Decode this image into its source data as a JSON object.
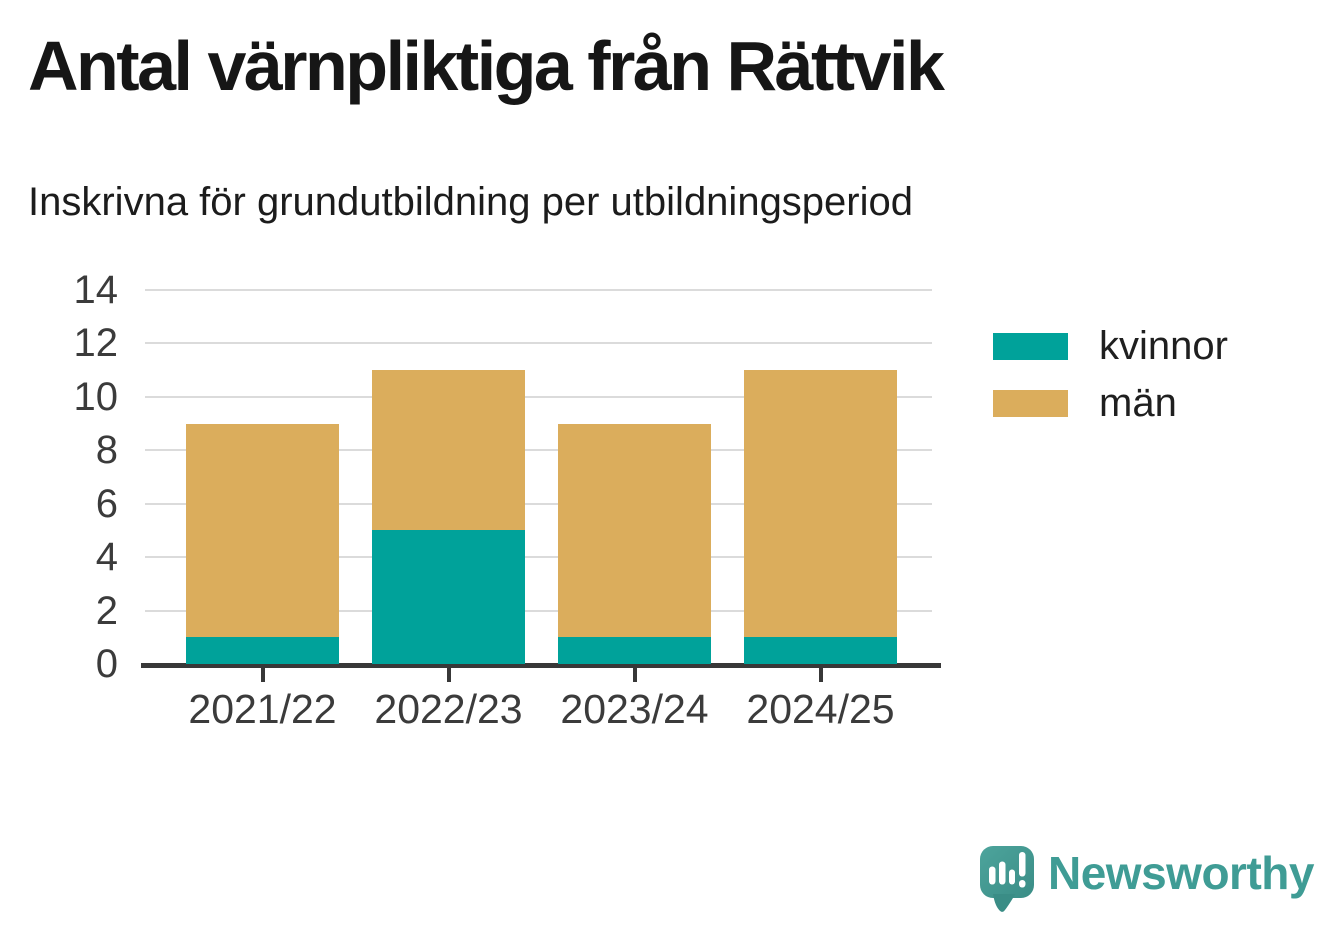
{
  "chart_data": {
    "type": "bar",
    "stacked": true,
    "title": "Antal värnpliktiga från Rättvik",
    "subtitle": "Inskrivna för grundutbildning per utbildningsperiod",
    "categories": [
      "2021/22",
      "2022/23",
      "2023/24",
      "2024/25"
    ],
    "series": [
      {
        "name": "kvinnor",
        "color": "#00a29a",
        "values": [
          1,
          5,
          1,
          1
        ]
      },
      {
        "name": "män",
        "color": "#dbad5c",
        "values": [
          8,
          6,
          8,
          10
        ]
      }
    ],
    "totals": [
      9,
      11,
      9,
      11
    ],
    "xlabel": "",
    "ylabel": "",
    "ylim": [
      0,
      14
    ],
    "yticks": [
      0,
      2,
      4,
      6,
      8,
      10,
      12,
      14
    ],
    "grid": true,
    "legend_position": "right-of-plot"
  },
  "colors": {
    "kvinnor": "#00a29a",
    "man": "#dbad5c",
    "grid": "#dbdbdb",
    "axis": "#383838",
    "tick_text": "#3b3b3b",
    "title_text": "#161616",
    "brand_teal": "#3f9c95"
  },
  "footer": {
    "brand": "Newsworthy",
    "brand_icon": "newsworthy-speech-bubble-bar-chart-icon"
  }
}
